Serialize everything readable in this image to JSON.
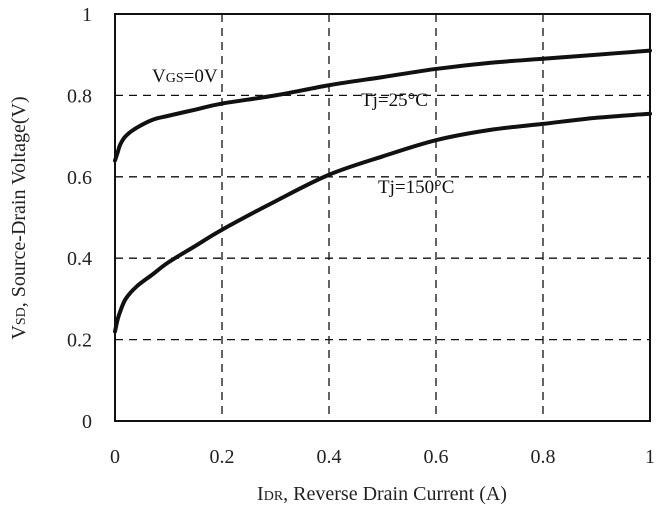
{
  "chart_data": {
    "type": "line",
    "xlabel": {
      "main": "I",
      "sub": "DR",
      "rest": ", Reverse Drain Current (A)"
    },
    "ylabel": {
      "main": "V",
      "sub": "SD",
      "rest": ", Source-Drain Voltage(V)"
    },
    "xlim": [
      0,
      1
    ],
    "ylim": [
      0,
      1
    ],
    "x_ticks": [
      "0",
      "0.2",
      "0.4",
      "0.6",
      "0.8",
      "1"
    ],
    "y_ticks": [
      "0",
      "0.2",
      "0.4",
      "0.6",
      "0.8",
      "1"
    ],
    "grid": true,
    "annotations": {
      "vgs": {
        "main": "V",
        "sub": "GS",
        "rest": "=0V"
      },
      "tj25": "Tj=25°C",
      "tj150": "Tj=150°C"
    },
    "series": [
      {
        "name": "Tj=25°C",
        "x": [
          0.0,
          0.005,
          0.01,
          0.02,
          0.04,
          0.07,
          0.1,
          0.15,
          0.2,
          0.3,
          0.4,
          0.5,
          0.6,
          0.7,
          0.8,
          0.9,
          1.0
        ],
        "y": [
          0.64,
          0.66,
          0.68,
          0.7,
          0.72,
          0.74,
          0.75,
          0.765,
          0.78,
          0.8,
          0.825,
          0.845,
          0.865,
          0.88,
          0.89,
          0.9,
          0.91
        ]
      },
      {
        "name": "Tj=150°C",
        "x": [
          0.0,
          0.005,
          0.01,
          0.02,
          0.04,
          0.07,
          0.1,
          0.15,
          0.2,
          0.3,
          0.4,
          0.5,
          0.6,
          0.7,
          0.8,
          0.9,
          1.0
        ],
        "y": [
          0.22,
          0.25,
          0.27,
          0.3,
          0.33,
          0.36,
          0.39,
          0.43,
          0.47,
          0.54,
          0.605,
          0.65,
          0.69,
          0.715,
          0.73,
          0.745,
          0.755
        ]
      }
    ]
  }
}
